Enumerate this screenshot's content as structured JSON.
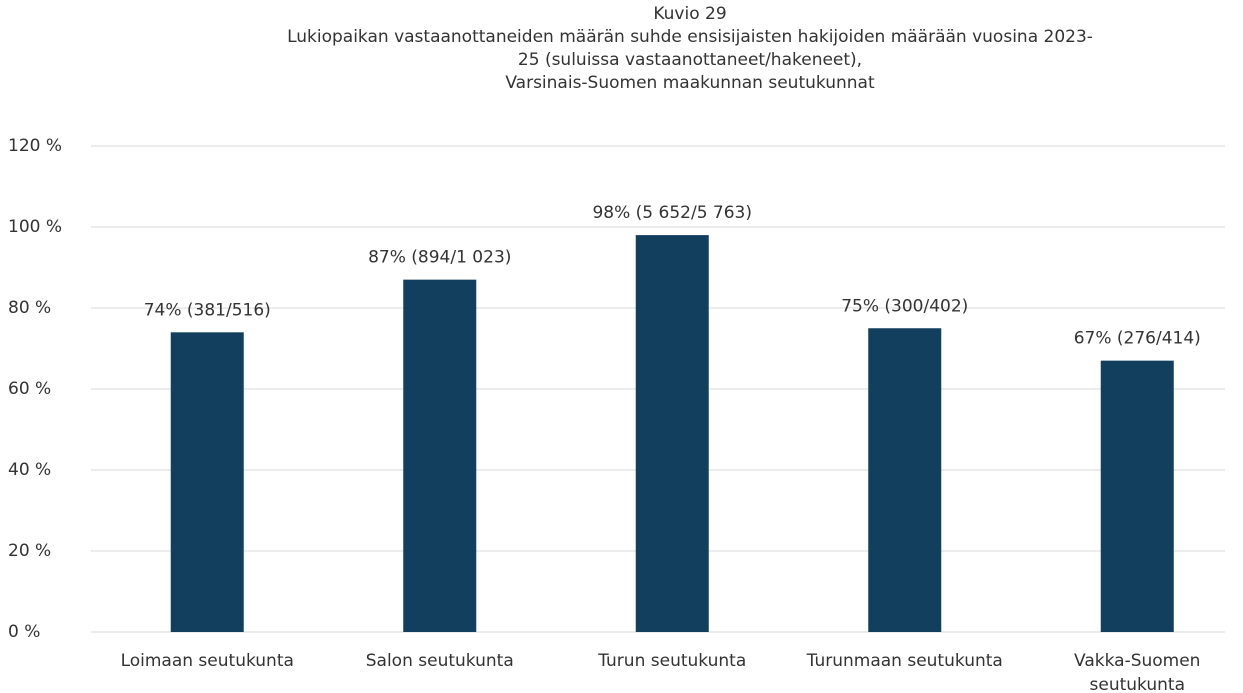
{
  "chart_data": {
    "type": "bar",
    "title": [
      "Kuvio 29",
      "Lukiopaikan vastaanottaneiden määrän suhde ensisijaisten hakijoiden määrään vuosina 2023-",
      "25 (suluissa vastaanottaneet/hakeneet),",
      "Varsinais-Suomen maakunnan seutukunnat"
    ],
    "categories": [
      "Loimaan seutukunta",
      "Salon seutukunta",
      "Turun seutukunta",
      "Turunmaan seutukunta",
      "Vakka-Suomen seutukunta"
    ],
    "values": [
      74,
      87,
      98,
      75,
      67
    ],
    "value_labels": [
      "74% (381/516)",
      "87% (894/1 023)",
      "98% (5 652/5 763)",
      "75% (300/402)",
      "67% (276/414)"
    ],
    "color": "#133f5f",
    "ylim": [
      0,
      120
    ],
    "yticks": [
      {
        "value": 0,
        "label": "0 %"
      },
      {
        "value": 20,
        "label": "20 %"
      },
      {
        "value": 40,
        "label": "40 %"
      },
      {
        "value": 60,
        "label": "60 %"
      },
      {
        "value": 80,
        "label": "80 %"
      },
      {
        "value": 100,
        "label": "100 %"
      },
      {
        "value": 120,
        "label": "120 %"
      }
    ],
    "grid": true
  }
}
